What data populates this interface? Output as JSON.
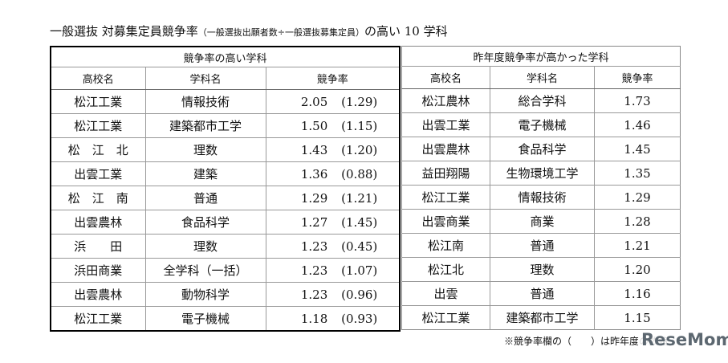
{
  "title": {
    "main": "一般選抜 対募集定員競争率",
    "note": "（一般選抜出願者数÷一般選抜募集定員）",
    "suffix": "の高い 10 学科"
  },
  "left": {
    "caption": "競争率の高い学科",
    "headers": [
      "高校名",
      "学科名",
      "競争率"
    ],
    "rows": [
      [
        "松江工業",
        "情報技術",
        "2.05",
        "(1.29)"
      ],
      [
        "松江工業",
        "建築都市工学",
        "1.50",
        "(1.15)"
      ],
      [
        "松　江　北",
        "理数",
        "1.43",
        "(1.20)"
      ],
      [
        "出雲工業",
        "建築",
        "1.36",
        "(0.88)"
      ],
      [
        "松　江　南",
        "普通",
        "1.29",
        "(1.21)"
      ],
      [
        "出雲農林",
        "食品科学",
        "1.27",
        "(1.45)"
      ],
      [
        "浜　　田",
        "理数",
        "1.23",
        "(0.45)"
      ],
      [
        "浜田商業",
        "全学科（一括）",
        "1.23",
        "(1.07)"
      ],
      [
        "出雲農林",
        "動物科学",
        "1.23",
        "(0.96)"
      ],
      [
        "松江工業",
        "電子機械",
        "1.18",
        "(0.93)"
      ]
    ]
  },
  "right": {
    "caption": "昨年度競争率が高かった学科",
    "headers": [
      "高校名",
      "学科名",
      "競争率"
    ],
    "rows": [
      [
        "松江農林",
        "総合学科",
        "1.73"
      ],
      [
        "出雲工業",
        "電子機械",
        "1.46"
      ],
      [
        "出雲農林",
        "食品科学",
        "1.45"
      ],
      [
        "益田翔陽",
        "生物環境工学",
        "1.35"
      ],
      [
        "松江工業",
        "情報技術",
        "1.29"
      ],
      [
        "出雲商業",
        "商業",
        "1.28"
      ],
      [
        "松江南",
        "普通",
        "1.21"
      ],
      [
        "松江北",
        "理数",
        "1.20"
      ],
      [
        "出雲",
        "普通",
        "1.16"
      ],
      [
        "松江工業",
        "建築都市工学",
        "1.15"
      ]
    ]
  },
  "footnote": "※競争率欄の（　　）は昨年度の数値",
  "logo": "ReseMom"
}
